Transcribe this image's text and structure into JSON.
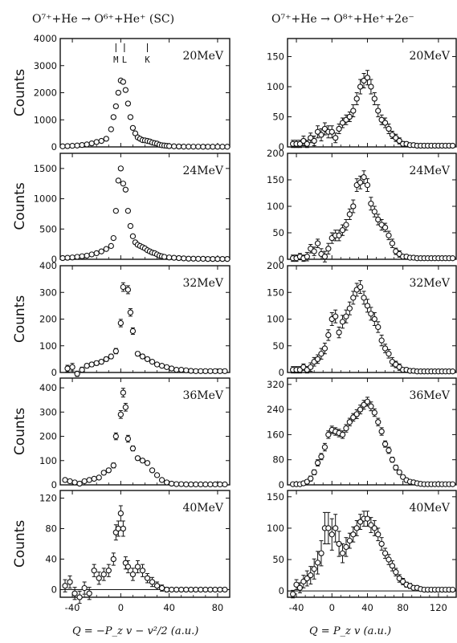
{
  "figure": {
    "left_title": "O⁷⁺+He → O⁶⁺+He⁺ (SC)",
    "right_title": "O⁷⁺+He → O⁸⁺+He⁺+2e⁻",
    "ylabel": "Counts",
    "left_xlabel": "Q = −P_z v − v²/2 (a.u.)",
    "right_xlabel": "Q = P_z v (a.u.)",
    "shell_labels": [
      "M",
      "L",
      "K"
    ]
  },
  "chart_data": [
    {
      "type": "scatter",
      "panel": "left-20MeV",
      "energy": "20MeV",
      "xlim": [
        -50,
        90
      ],
      "ylim": [
        0,
        4000
      ],
      "yticks": [
        0,
        1000,
        2000,
        3000,
        4000
      ],
      "xticks": [
        -40,
        0,
        40,
        80
      ],
      "errbars": false,
      "x": [
        -48,
        -44,
        -40,
        -36,
        -32,
        -28,
        -24,
        -20,
        -16,
        -12,
        -8,
        -6,
        -4,
        -2,
        0,
        2,
        4,
        6,
        8,
        10,
        12,
        14,
        16,
        18,
        20,
        22,
        24,
        26,
        28,
        30,
        32,
        34,
        36,
        38,
        40,
        44,
        48,
        52,
        56,
        60,
        64,
        68,
        72,
        76,
        80,
        84,
        88
      ],
      "y": [
        20,
        30,
        40,
        50,
        70,
        90,
        130,
        180,
        220,
        300,
        650,
        1100,
        1500,
        2000,
        2450,
        2400,
        2100,
        1600,
        1100,
        700,
        500,
        350,
        300,
        250,
        240,
        220,
        200,
        160,
        140,
        120,
        80,
        60,
        50,
        40,
        30,
        20,
        15,
        10,
        10,
        8,
        8,
        5,
        5,
        5,
        5,
        5,
        5
      ],
      "err": []
    },
    {
      "type": "scatter",
      "panel": "left-24MeV",
      "energy": "24MeV",
      "xlim": [
        -50,
        90
      ],
      "ylim": [
        0,
        1750
      ],
      "yticks": [
        0,
        500,
        1000,
        1500
      ],
      "xticks": [
        -40,
        0,
        40,
        80
      ],
      "errbars": false,
      "x": [
        -48,
        -44,
        -40,
        -36,
        -32,
        -28,
        -24,
        -20,
        -16,
        -12,
        -8,
        -6,
        -4,
        -2,
        0,
        2,
        4,
        6,
        8,
        10,
        12,
        14,
        16,
        18,
        20,
        22,
        24,
        26,
        28,
        30,
        32,
        34,
        36,
        40,
        44,
        48,
        52,
        56,
        60,
        64,
        68,
        72,
        76,
        80,
        84,
        88
      ],
      "y": [
        20,
        25,
        30,
        40,
        50,
        60,
        80,
        100,
        130,
        170,
        220,
        350,
        800,
        1300,
        1500,
        1250,
        1150,
        800,
        550,
        380,
        280,
        240,
        220,
        200,
        180,
        150,
        130,
        110,
        100,
        80,
        60,
        50,
        40,
        30,
        25,
        20,
        15,
        10,
        10,
        8,
        8,
        5,
        5,
        5,
        5,
        5
      ],
      "err": []
    },
    {
      "type": "scatter",
      "panel": "left-32MeV",
      "energy": "32MeV",
      "xlim": [
        -50,
        90
      ],
      "ylim": [
        0,
        400
      ],
      "yticks": [
        0,
        100,
        200,
        300,
        400
      ],
      "xticks": [
        -40,
        0,
        40,
        80
      ],
      "errbars": true,
      "x": [
        -44,
        -40,
        -36,
        -32,
        -28,
        -24,
        -20,
        -16,
        -12,
        -8,
        -4,
        0,
        2,
        6,
        8,
        10,
        14,
        18,
        22,
        26,
        30,
        34,
        38,
        42,
        46,
        50,
        54,
        58,
        62,
        66,
        70,
        74,
        78,
        82,
        86
      ],
      "y": [
        15,
        20,
        -5,
        10,
        25,
        30,
        35,
        40,
        50,
        60,
        80,
        185,
        320,
        310,
        225,
        155,
        70,
        60,
        50,
        40,
        30,
        25,
        20,
        15,
        10,
        10,
        8,
        6,
        5,
        5,
        5,
        5,
        5,
        5,
        5
      ],
      "err": [
        12,
        14,
        10,
        10,
        8,
        8,
        8,
        8,
        8,
        8,
        10,
        14,
        16,
        15,
        14,
        12,
        8,
        8,
        6,
        6,
        6,
        5,
        5,
        4,
        4,
        4,
        4,
        3,
        3,
        3,
        3,
        3,
        3,
        3,
        3
      ]
    },
    {
      "type": "scatter",
      "panel": "left-36MeV",
      "energy": "36MeV",
      "xlim": [
        -50,
        90
      ],
      "ylim": [
        0,
        440
      ],
      "yticks": [
        0,
        100,
        200,
        300,
        400
      ],
      "xticks": [
        -40,
        0,
        40,
        80
      ],
      "errbars": true,
      "x": [
        -46,
        -42,
        -38,
        -34,
        -30,
        -26,
        -22,
        -18,
        -14,
        -10,
        -6,
        -4,
        0,
        2,
        4,
        6,
        10,
        14,
        18,
        22,
        26,
        30,
        34,
        38,
        42,
        46,
        50,
        54,
        58,
        62,
        66,
        70,
        74,
        78,
        82,
        86
      ],
      "y": [
        20,
        15,
        10,
        5,
        15,
        20,
        25,
        30,
        50,
        60,
        80,
        200,
        290,
        380,
        320,
        190,
        150,
        110,
        100,
        90,
        60,
        40,
        20,
        10,
        5,
        3,
        3,
        2,
        2,
        2,
        2,
        2,
        2,
        2,
        2,
        2
      ],
      "err": [
        8,
        8,
        6,
        6,
        6,
        6,
        6,
        6,
        8,
        8,
        10,
        14,
        16,
        18,
        16,
        14,
        10,
        8,
        8,
        8,
        6,
        6,
        5,
        4,
        3,
        3,
        3,
        3,
        3,
        3,
        3,
        3,
        3,
        3,
        3,
        3
      ]
    },
    {
      "type": "scatter",
      "panel": "left-40MeV",
      "energy": "40MeV",
      "xlim": [
        -50,
        90
      ],
      "ylim": [
        -10,
        130
      ],
      "yticks": [
        0,
        40,
        80,
        120
      ],
      "xticks": [
        -40,
        0,
        40,
        80
      ],
      "errbars": true,
      "x": [
        -46,
        -42,
        -38,
        -34,
        -30,
        -26,
        -22,
        -18,
        -14,
        -10,
        -6,
        -4,
        -2,
        0,
        2,
        4,
        6,
        10,
        14,
        18,
        22,
        26,
        30,
        34,
        38,
        42,
        46,
        50,
        54,
        58,
        62,
        66,
        70,
        74,
        78,
        82,
        86
      ],
      "y": [
        5,
        10,
        -5,
        -10,
        2,
        -5,
        25,
        15,
        20,
        25,
        40,
        75,
        80,
        100,
        80,
        35,
        30,
        20,
        30,
        25,
        15,
        10,
        5,
        2,
        0,
        0,
        0,
        0,
        0,
        0,
        0,
        0,
        0,
        0,
        0,
        0,
        0
      ],
      "err": [
        8,
        8,
        8,
        8,
        8,
        8,
        8,
        8,
        8,
        8,
        8,
        10,
        10,
        10,
        10,
        8,
        8,
        8,
        8,
        8,
        6,
        6,
        5,
        4,
        3,
        2,
        2,
        2,
        2,
        2,
        2,
        2,
        2,
        2,
        2,
        2,
        2
      ]
    },
    {
      "type": "scatter",
      "panel": "right-20MeV",
      "energy": "20MeV",
      "xlim": [
        -50,
        140
      ],
      "ylim": [
        0,
        180
      ],
      "yticks": [
        0,
        50,
        100,
        150
      ],
      "xticks": [
        -40,
        0,
        40,
        80,
        120
      ],
      "errbars": true,
      "x": [
        -44,
        -40,
        -36,
        -32,
        -28,
        -24,
        -20,
        -16,
        -12,
        -8,
        -4,
        0,
        4,
        8,
        12,
        16,
        20,
        24,
        28,
        32,
        36,
        40,
        44,
        48,
        52,
        56,
        60,
        64,
        68,
        72,
        76,
        80,
        84,
        88,
        92,
        96,
        100,
        104,
        108,
        112,
        116,
        120,
        124,
        128,
        132,
        136
      ],
      "y": [
        5,
        5,
        5,
        10,
        5,
        15,
        10,
        25,
        20,
        30,
        25,
        25,
        15,
        30,
        40,
        45,
        50,
        60,
        80,
        100,
        110,
        115,
        100,
        80,
        60,
        45,
        40,
        30,
        20,
        15,
        10,
        5,
        5,
        3,
        3,
        2,
        2,
        2,
        2,
        2,
        2,
        2,
        2,
        2,
        2,
        2
      ],
      "err": [
        6,
        6,
        6,
        8,
        6,
        8,
        8,
        10,
        10,
        10,
        10,
        10,
        8,
        8,
        8,
        8,
        8,
        10,
        10,
        12,
        12,
        12,
        12,
        10,
        10,
        8,
        8,
        8,
        6,
        6,
        5,
        4,
        3,
        3,
        3,
        3,
        3,
        3,
        3,
        3,
        3,
        3,
        3,
        3,
        3,
        3
      ]
    },
    {
      "type": "scatter",
      "panel": "right-24MeV",
      "energy": "24MeV",
      "xlim": [
        -50,
        140
      ],
      "ylim": [
        0,
        200
      ],
      "yticks": [
        0,
        50,
        100,
        150,
        200
      ],
      "xticks": [
        -40,
        0,
        40,
        80,
        120
      ],
      "errbars": true,
      "x": [
        -44,
        -40,
        -36,
        -32,
        -28,
        -24,
        -20,
        -16,
        -12,
        -8,
        -4,
        0,
        4,
        8,
        12,
        16,
        20,
        24,
        28,
        32,
        36,
        40,
        44,
        48,
        52,
        56,
        60,
        64,
        68,
        72,
        76,
        80,
        84,
        88,
        92,
        96,
        100,
        104,
        108,
        112,
        116,
        120,
        124,
        128,
        132,
        136
      ],
      "y": [
        2,
        2,
        5,
        2,
        5,
        20,
        15,
        30,
        10,
        5,
        20,
        40,
        45,
        45,
        55,
        65,
        85,
        100,
        140,
        145,
        155,
        140,
        105,
        90,
        75,
        65,
        60,
        45,
        30,
        15,
        10,
        5,
        5,
        3,
        3,
        2,
        2,
        2,
        2,
        2,
        2,
        2,
        2,
        2,
        2,
        2
      ],
      "err": [
        6,
        6,
        6,
        6,
        8,
        8,
        8,
        8,
        10,
        10,
        10,
        10,
        10,
        10,
        10,
        10,
        10,
        12,
        12,
        12,
        12,
        12,
        12,
        10,
        10,
        10,
        8,
        8,
        8,
        6,
        6,
        4,
        3,
        3,
        3,
        3,
        3,
        3,
        3,
        3,
        3,
        3,
        3,
        3,
        3,
        3
      ]
    },
    {
      "type": "scatter",
      "panel": "right-32MeV",
      "energy": "32MeV",
      "xlim": [
        -50,
        140
      ],
      "ylim": [
        0,
        200
      ],
      "yticks": [
        0,
        50,
        100,
        150,
        200
      ],
      "xticks": [
        -40,
        0,
        40,
        80,
        120
      ],
      "errbars": true,
      "x": [
        -44,
        -40,
        -36,
        -32,
        -28,
        -24,
        -20,
        -16,
        -12,
        -8,
        -4,
        0,
        4,
        8,
        12,
        16,
        20,
        24,
        28,
        32,
        36,
        40,
        44,
        48,
        52,
        56,
        60,
        64,
        68,
        72,
        76,
        80,
        84,
        88,
        92,
        96,
        100,
        104,
        108,
        112,
        116,
        120,
        124,
        128,
        132,
        136
      ],
      "y": [
        5,
        5,
        5,
        10,
        5,
        10,
        20,
        25,
        35,
        45,
        70,
        100,
        105,
        75,
        95,
        105,
        120,
        140,
        155,
        160,
        140,
        125,
        110,
        100,
        85,
        60,
        45,
        35,
        20,
        15,
        10,
        5,
        5,
        3,
        3,
        2,
        2,
        2,
        2,
        2,
        2,
        2,
        2,
        2,
        2,
        2
      ],
      "err": [
        6,
        6,
        6,
        6,
        6,
        8,
        8,
        8,
        10,
        10,
        10,
        12,
        12,
        10,
        12,
        12,
        12,
        12,
        12,
        12,
        12,
        12,
        12,
        12,
        10,
        10,
        8,
        8,
        8,
        6,
        6,
        4,
        3,
        3,
        3,
        3,
        3,
        3,
        3,
        3,
        3,
        3,
        3,
        3,
        3,
        3
      ]
    },
    {
      "type": "scatter",
      "panel": "right-36MeV",
      "energy": "36MeV",
      "xlim": [
        -50,
        140
      ],
      "ylim": [
        0,
        340
      ],
      "yticks": [
        0,
        80,
        160,
        240,
        320
      ],
      "xticks": [
        -40,
        0,
        40,
        80,
        120
      ],
      "errbars": true,
      "x": [
        -44,
        -40,
        -36,
        -32,
        -28,
        -24,
        -20,
        -16,
        -12,
        -8,
        -4,
        0,
        4,
        8,
        12,
        16,
        20,
        24,
        28,
        32,
        36,
        40,
        44,
        48,
        52,
        56,
        60,
        64,
        68,
        72,
        76,
        80,
        84,
        88,
        92,
        96,
        100,
        104,
        108,
        112,
        116,
        120,
        124,
        128,
        132,
        136
      ],
      "y": [
        2,
        2,
        2,
        5,
        10,
        20,
        40,
        70,
        90,
        120,
        160,
        175,
        170,
        165,
        160,
        180,
        200,
        215,
        225,
        240,
        255,
        265,
        250,
        230,
        200,
        170,
        130,
        110,
        80,
        55,
        40,
        25,
        15,
        10,
        8,
        5,
        3,
        2,
        2,
        2,
        2,
        2,
        2,
        2,
        2,
        2
      ],
      "err": [
        4,
        4,
        4,
        6,
        6,
        8,
        8,
        10,
        10,
        12,
        12,
        12,
        12,
        12,
        12,
        12,
        12,
        12,
        14,
        14,
        14,
        14,
        14,
        12,
        12,
        12,
        10,
        10,
        8,
        8,
        6,
        6,
        4,
        4,
        3,
        3,
        3,
        3,
        3,
        3,
        3,
        3,
        3,
        3,
        3,
        3
      ]
    },
    {
      "type": "scatter",
      "panel": "right-40MeV",
      "energy": "40MeV",
      "xlim": [
        -50,
        140
      ],
      "ylim": [
        -10,
        160
      ],
      "yticks": [
        0,
        50,
        100,
        150
      ],
      "xticks": [
        -40,
        0,
        40,
        80,
        120
      ],
      "errbars": true,
      "x": [
        -44,
        -40,
        -36,
        -32,
        -28,
        -24,
        -20,
        -16,
        -12,
        -8,
        -4,
        0,
        4,
        8,
        12,
        16,
        20,
        24,
        28,
        32,
        36,
        40,
        44,
        48,
        52,
        56,
        60,
        64,
        68,
        72,
        76,
        80,
        84,
        88,
        92,
        96,
        100,
        104,
        108,
        112,
        116,
        120,
        124,
        128,
        132,
        136
      ],
      "y": [
        -5,
        10,
        5,
        15,
        20,
        25,
        35,
        45,
        60,
        100,
        100,
        90,
        100,
        75,
        60,
        70,
        80,
        90,
        100,
        110,
        115,
        115,
        105,
        100,
        90,
        75,
        60,
        50,
        40,
        30,
        20,
        15,
        10,
        8,
        5,
        5,
        3,
        2,
        2,
        2,
        2,
        2,
        2,
        2,
        2,
        2
      ],
      "err": [
        6,
        8,
        8,
        10,
        12,
        14,
        16,
        18,
        20,
        25,
        25,
        25,
        22,
        20,
        15,
        15,
        12,
        12,
        12,
        12,
        12,
        12,
        12,
        12,
        10,
        10,
        8,
        8,
        8,
        6,
        6,
        5,
        4,
        4,
        3,
        3,
        3,
        3,
        3,
        3,
        3,
        3,
        3,
        3,
        3,
        3
      ]
    }
  ]
}
